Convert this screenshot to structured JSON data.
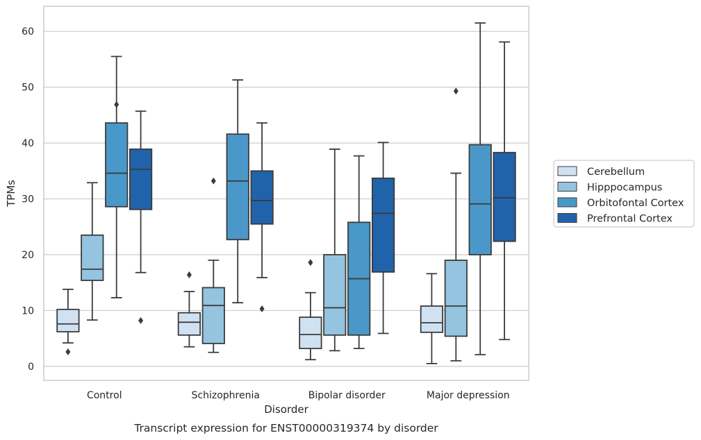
{
  "caption": "Transcript expression for ENST00000319374 by disorder",
  "chart_data": {
    "type": "box",
    "title": "",
    "xlabel": "Disorder",
    "ylabel": "TPMs",
    "ylim": [
      -2.5,
      64.5
    ],
    "yticks": [
      0,
      10,
      20,
      30,
      40,
      50,
      60
    ],
    "grid": "horizontal",
    "legend_position": "right",
    "categories": [
      "Control",
      "Schizophrenia",
      "Bipolar disorder",
      "Major depression"
    ],
    "series": [
      {
        "name": "Cerebellum",
        "color": "#d0e1f2",
        "boxes": [
          {
            "whisker_low": 4.2,
            "q1": 6.2,
            "median": 7.6,
            "q3": 10.2,
            "whisker_high": 13.8,
            "outliers": [
              2.6
            ]
          },
          {
            "whisker_low": 3.5,
            "q1": 5.6,
            "median": 7.9,
            "q3": 9.6,
            "whisker_high": 13.4,
            "outliers": [
              16.4
            ]
          },
          {
            "whisker_low": 1.2,
            "q1": 3.2,
            "median": 5.7,
            "q3": 8.8,
            "whisker_high": 13.2,
            "outliers": [
              18.6
            ]
          },
          {
            "whisker_low": 0.5,
            "q1": 6.1,
            "median": 7.8,
            "q3": 10.8,
            "whisker_high": 16.6,
            "outliers": []
          }
        ]
      },
      {
        "name": "Hipppocampus",
        "color": "#94c4df",
        "boxes": [
          {
            "whisker_low": 8.3,
            "q1": 15.4,
            "median": 17.4,
            "q3": 23.5,
            "whisker_high": 32.9,
            "outliers": []
          },
          {
            "whisker_low": 2.5,
            "q1": 4.1,
            "median": 10.9,
            "q3": 14.1,
            "whisker_high": 19.0,
            "outliers": [
              33.2
            ]
          },
          {
            "whisker_low": 2.8,
            "q1": 5.6,
            "median": 10.5,
            "q3": 20.0,
            "whisker_high": 38.9,
            "outliers": []
          },
          {
            "whisker_low": 1.0,
            "q1": 5.4,
            "median": 10.8,
            "q3": 19.0,
            "whisker_high": 34.6,
            "outliers": [
              49.3
            ]
          }
        ]
      },
      {
        "name": "Orbitofontal Cortex",
        "color": "#4a98c9",
        "boxes": [
          {
            "whisker_low": 12.3,
            "q1": 28.6,
            "median": 34.6,
            "q3": 43.6,
            "whisker_high": 55.5,
            "outliers": [
              46.9
            ]
          },
          {
            "whisker_low": 11.4,
            "q1": 22.7,
            "median": 33.2,
            "q3": 41.6,
            "whisker_high": 51.3,
            "outliers": []
          },
          {
            "whisker_low": 3.2,
            "q1": 5.6,
            "median": 15.7,
            "q3": 25.8,
            "whisker_high": 37.7,
            "outliers": []
          },
          {
            "whisker_low": 2.1,
            "q1": 20.0,
            "median": 29.1,
            "q3": 39.7,
            "whisker_high": 61.5,
            "outliers": []
          }
        ]
      },
      {
        "name": "Prefrontal Cortex",
        "color": "#2163aa",
        "boxes": [
          {
            "whisker_low": 16.8,
            "q1": 28.1,
            "median": 35.3,
            "q3": 38.9,
            "whisker_high": 45.7,
            "outliers": [
              8.2
            ]
          },
          {
            "whisker_low": 15.9,
            "q1": 25.5,
            "median": 29.7,
            "q3": 35.0,
            "whisker_high": 43.6,
            "outliers": [
              10.3
            ]
          },
          {
            "whisker_low": 5.9,
            "q1": 16.9,
            "median": 27.4,
            "q3": 33.7,
            "whisker_high": 40.1,
            "outliers": []
          },
          {
            "whisker_low": 4.8,
            "q1": 22.4,
            "median": 30.2,
            "q3": 38.3,
            "whisker_high": 58.1,
            "outliers": []
          }
        ]
      }
    ]
  }
}
